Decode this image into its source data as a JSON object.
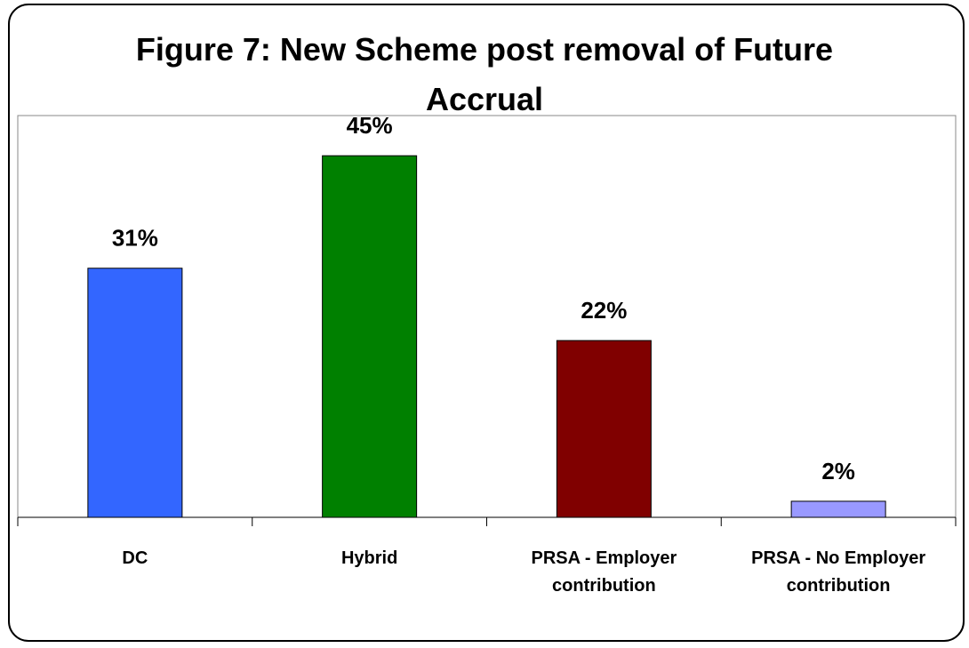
{
  "chart_data": {
    "type": "bar",
    "title": "Figure 7: New Scheme post removal of Future Accrual",
    "categories": [
      "DC",
      "Hybrid",
      "PRSA - Employer contribution",
      "PRSA - No Employer contribution"
    ],
    "values": [
      31,
      45,
      22,
      2
    ],
    "value_labels": [
      "31%",
      "45%",
      "22%",
      "2%"
    ],
    "colors": [
      "#3366ff",
      "#008000",
      "#800000",
      "#9999ff"
    ],
    "ylim": [
      0,
      50
    ]
  }
}
